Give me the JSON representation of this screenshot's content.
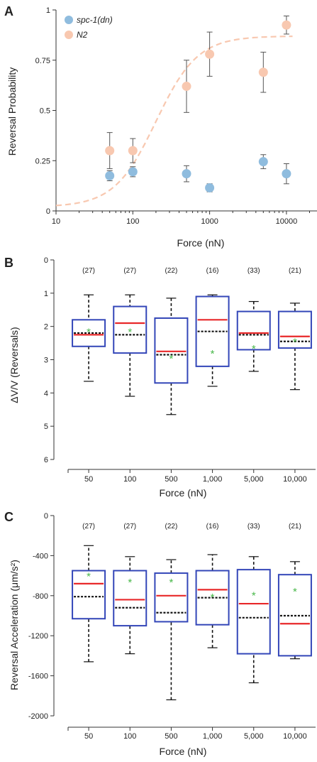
{
  "chart_data": [
    {
      "panel": "A",
      "type": "scatter",
      "xlabel": "Force (nN)",
      "ylabel": "Reversal Probability",
      "xscale": "log",
      "xlim": [
        10,
        25000
      ],
      "ylim": [
        0,
        1
      ],
      "xticks": [
        10,
        100,
        1000,
        10000
      ],
      "xtick_labels": [
        "10",
        "100",
        "1000",
        "10000"
      ],
      "yticks": [
        0,
        0.25,
        0.5,
        0.75,
        1
      ],
      "ytick_labels": [
        "0",
        "0.25",
        "0.5",
        "0.75",
        "1"
      ],
      "legend_position": "top-left",
      "series": [
        {
          "name": "spc-1(dn)",
          "color": "#8fbcde",
          "x": [
            50,
            100,
            500,
            1000,
            5000,
            10000
          ],
          "y": [
            0.175,
            0.195,
            0.185,
            0.115,
            0.245,
            0.185
          ],
          "err": [
            0.025,
            0.025,
            0.04,
            0.02,
            0.035,
            0.05
          ]
        },
        {
          "name": "N2",
          "color": "#f8c8b0",
          "x": [
            50,
            100,
            500,
            1000,
            5000,
            10000
          ],
          "y": [
            0.3,
            0.3,
            0.62,
            0.78,
            0.69,
            0.925
          ],
          "err": [
            0.09,
            0.06,
            0.13,
            0.11,
            0.1,
            0.045
          ]
        }
      ],
      "fit_curve": {
        "color": "#f8c8b0",
        "style": "dashed",
        "bottom": 0.02,
        "top": 0.87,
        "ec50": 200,
        "hill": 1.6
      }
    },
    {
      "panel": "B",
      "type": "box",
      "xlabel": "Force (nN)",
      "ylabel": "ΔV/V (Reversals)",
      "y_inverted": true,
      "ylim": [
        0,
        6
      ],
      "yticks": [
        0,
        1,
        2,
        3,
        4,
        5,
        6
      ],
      "ytick_labels": [
        "0",
        "1",
        "2",
        "3",
        "4",
        "5",
        "6"
      ],
      "categories": [
        "50",
        "100",
        "500",
        "1,000",
        "5,000",
        "10,000"
      ],
      "counts": [
        "(27)",
        "(27)",
        "(22)",
        "(16)",
        "(33)",
        "(21)"
      ],
      "box_color": "#3346b8",
      "median_color": "#e8282a",
      "mean_marker_color": "#49b84a",
      "boxes": [
        {
          "whisker_low": 1.05,
          "q1": 1.8,
          "median": 2.25,
          "mean_line": 2.2,
          "mean": 2.15,
          "q3": 2.6,
          "whisker_high": 3.65
        },
        {
          "whisker_low": 1.05,
          "q1": 1.4,
          "median": 1.9,
          "mean_line": 2.25,
          "mean": 2.15,
          "q3": 2.8,
          "whisker_high": 4.1
        },
        {
          "whisker_low": 1.15,
          "q1": 1.75,
          "median": 2.75,
          "mean_line": 2.85,
          "mean": 2.95,
          "q3": 3.7,
          "whisker_high": 4.65
        },
        {
          "whisker_low": 1.05,
          "q1": 1.1,
          "median": 1.8,
          "mean_line": 2.15,
          "mean": 2.8,
          "q3": 3.2,
          "whisker_high": 3.8
        },
        {
          "whisker_low": 1.25,
          "q1": 1.55,
          "median": 2.2,
          "mean_line": 2.25,
          "mean": 2.65,
          "q3": 2.7,
          "whisker_high": 3.35
        },
        {
          "whisker_low": 1.3,
          "q1": 1.55,
          "median": 2.3,
          "mean_line": 2.45,
          "mean": 2.45,
          "q3": 2.65,
          "whisker_high": 3.9
        }
      ]
    },
    {
      "panel": "C",
      "type": "box",
      "xlabel": "Force (nN)",
      "ylabel": "Reversal Acceleration (μm/s²)",
      "ylim": [
        -2000,
        0
      ],
      "yticks": [
        0,
        -400,
        -800,
        -1200,
        -1600,
        -2000
      ],
      "ytick_labels": [
        "0",
        "-400",
        "-800",
        "-1200",
        "-1600",
        "-2000"
      ],
      "categories": [
        "50",
        "100",
        "500",
        "1,000",
        "5,000",
        "10,000"
      ],
      "counts": [
        "(27)",
        "(27)",
        "(22)",
        "(16)",
        "(33)",
        "(21)"
      ],
      "box_color": "#3346b8",
      "median_color": "#e8282a",
      "mean_marker_color": "#49b84a",
      "boxes": [
        {
          "whisker_low": -1460,
          "q1": -1030,
          "median": -680,
          "mean_line": -810,
          "mean": -600,
          "q3": -550,
          "whisker_high": -300
        },
        {
          "whisker_low": -1380,
          "q1": -1100,
          "median": -840,
          "mean_line": -920,
          "mean": -660,
          "q3": -550,
          "whisker_high": -410
        },
        {
          "whisker_low": -1840,
          "q1": -1060,
          "median": -800,
          "mean_line": -970,
          "mean": -660,
          "q3": -575,
          "whisker_high": -440
        },
        {
          "whisker_low": -1320,
          "q1": -1090,
          "median": -740,
          "mean_line": -820,
          "mean": -810,
          "q3": -550,
          "whisker_high": -390
        },
        {
          "whisker_low": -1670,
          "q1": -1380,
          "median": -880,
          "mean_line": -1020,
          "mean": -790,
          "q3": -540,
          "whisker_high": -410
        },
        {
          "whisker_low": -1430,
          "q1": -1400,
          "median": -1080,
          "mean_line": -1000,
          "mean": -750,
          "q3": -590,
          "whisker_high": -460
        }
      ]
    }
  ]
}
